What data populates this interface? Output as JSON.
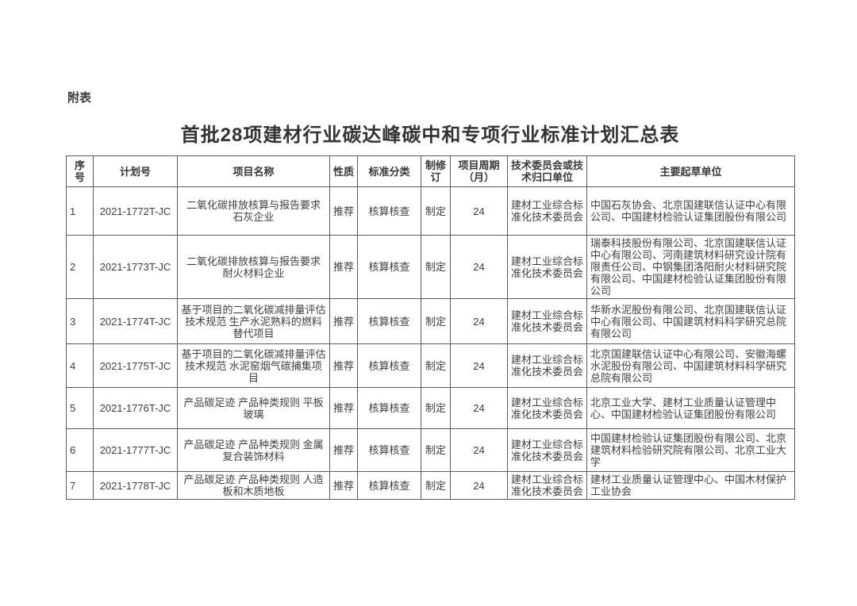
{
  "page": {
    "appendix_label": "附表",
    "title": "首批28项建材行业碳达峰碳中和专项行业标准计划汇总表"
  },
  "colors": {
    "text": "#3f3f3f",
    "border": "#5c5c5c",
    "background": "#ffffff"
  },
  "table": {
    "columns": [
      "序号",
      "计划号",
      "项目名称",
      "性质",
      "标准分类",
      "制修订",
      "项目周期（月）",
      "技术委员会或技术归口单位",
      "主要起草单位"
    ],
    "rows": [
      {
        "seq": "1",
        "plan_no": "2021-1772T-JC",
        "project_name": "二氧化碳排放核算与报告要求 石灰企业",
        "nature": "推荐",
        "category": "核算核查",
        "revision": "制定",
        "period_months": "24",
        "committee": "建材工业综合标准化技术委员会",
        "drafters": "中国石灰协会、北京国建联信认证中心有限公司、中国建材检验认证集团股份有限公司"
      },
      {
        "seq": "2",
        "plan_no": "2021-1773T-JC",
        "project_name": "二氧化碳排放核算与报告要求 耐火材料企业",
        "nature": "推荐",
        "category": "核算核查",
        "revision": "制定",
        "period_months": "24",
        "committee": "建材工业综合标准化技术委员会",
        "drafters": "瑞泰科技股份有限公司、北京国建联信认证中心有限公司、河南建筑材料研究设计院有限责任公司、中钢集团洛阳耐火材料研究院有限公司、中国建材检验认证集团股份有限公司"
      },
      {
        "seq": "3",
        "plan_no": "2021-1774T-JC",
        "project_name": "基于项目的二氧化碳减排量评估技术规范 生产水泥熟料的燃料替代项目",
        "nature": "推荐",
        "category": "核算核查",
        "revision": "制定",
        "period_months": "24",
        "committee": "建材工业综合标准化技术委员会",
        "drafters": "华新水泥股份有限公司、北京国建联信认证中心有限公司、中国建筑材料科学研究总院有限公司"
      },
      {
        "seq": "4",
        "plan_no": "2021-1775T-JC",
        "project_name": "基于项目的二氧化碳减排量评估技术规范 水泥窑烟气碳捕集项目",
        "nature": "推荐",
        "category": "核算核查",
        "revision": "制定",
        "period_months": "24",
        "committee": "建材工业综合标准化技术委员会",
        "drafters": "北京国建联信认证中心有限公司、安徽海螺水泥股份有限公司、中国建筑材料科学研究总院有限公司"
      },
      {
        "seq": "5",
        "plan_no": "2021-1776T-JC",
        "project_name": "产品碳足迹 产品种类规则 平板玻璃",
        "nature": "推荐",
        "category": "核算核查",
        "revision": "制定",
        "period_months": "24",
        "committee": "建材工业综合标准化技术委员会",
        "drafters": "北京工业大学、建材工业质量认证管理中心、中国建材检验认证集团股份有限公司"
      },
      {
        "seq": "6",
        "plan_no": "2021-1777T-JC",
        "project_name": "产品碳足迹 产品种类规则 金属复合装饰材料",
        "nature": "推荐",
        "category": "核算核查",
        "revision": "制定",
        "period_months": "24",
        "committee": "建材工业综合标准化技术委员会",
        "drafters": "中国建材检验认证集团股份有限公司、北京建筑材料检验研究院有限公司、北京工业大学"
      },
      {
        "seq": "7",
        "plan_no": "2021-1778T-JC",
        "project_name": "产品碳足迹 产品种类规则 人造板和木质地板",
        "nature": "推荐",
        "category": "核算核查",
        "revision": "制定",
        "period_months": "24",
        "committee": "建材工业综合标准化技术委员会",
        "drafters": "建材工业质量认证管理中心、中国木材保护工业协会"
      }
    ]
  }
}
